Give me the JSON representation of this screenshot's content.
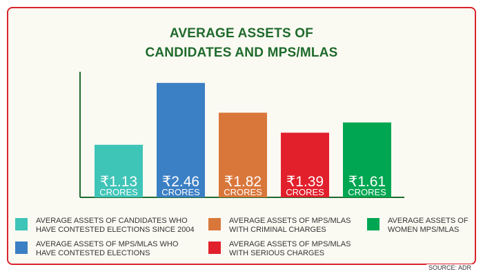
{
  "title_line1": "AVERAGE ASSETS OF",
  "title_line2": "CANDIDATES AND MPS/MLAS",
  "source": "SOURCE: ADR",
  "chart_data": {
    "type": "bar",
    "title": "AVERAGE ASSETS OF CANDIDATES AND MPS/MLAS",
    "unit": "CRORES",
    "categories": [
      "AVERAGE ASSETS OF CANDIDATES WHO HAVE CONTESTED ELECTIONS SINCE 2004",
      "AVERAGE ASSETS OF MPS/MLAS WHO HAVE CONTESTED ELECTIONS",
      "AVERAGE ASSETS OF MPS/MLAS WITH CRIMINAL CHARGES",
      "AVERAGE ASSETS OF MPS/MLAS WITH SERIOUS CHARGES",
      "AVERAGE ASSETS  OF WOMEN MPS/MLAS"
    ],
    "values": [
      1.13,
      2.46,
      1.82,
      1.39,
      1.61
    ],
    "value_labels": [
      "₹1.13",
      "₹2.46",
      "₹1.82",
      "₹1.39",
      "₹1.61"
    ],
    "unit_labels": [
      "CRORES",
      "CRORES",
      "CRORES",
      "CRORES",
      "CRORES"
    ],
    "colors": [
      "#3fc4b8",
      "#3b7fc4",
      "#d9773b",
      "#e2202c",
      "#00a651"
    ],
    "axis_color": "#1e6a2c",
    "ylim": [
      0,
      2.7
    ],
    "legend_position": "bottom"
  },
  "legend": [
    {
      "text": "AVERAGE ASSETS OF CANDIDATES WHO\nHAVE CONTESTED ELECTIONS SINCE 2004",
      "color": "#3fc4b8"
    },
    {
      "text": "AVERAGE ASSETS OF MPS/MLAS\nWITH CRIMINAL CHARGES",
      "color": "#d9773b"
    },
    {
      "text": "AVERAGE ASSETS  OF\nWOMEN MPS/MLAS",
      "color": "#00a651"
    },
    {
      "text": "AVERAGE ASSETS OF MPS/MLAS WHO\nHAVE CONTESTED ELECTIONS",
      "color": "#3b7fc4"
    },
    {
      "text": "AVERAGE ASSETS OF MPS/MLAS\nWITH SERIOUS CHARGES",
      "color": "#e2202c"
    }
  ]
}
